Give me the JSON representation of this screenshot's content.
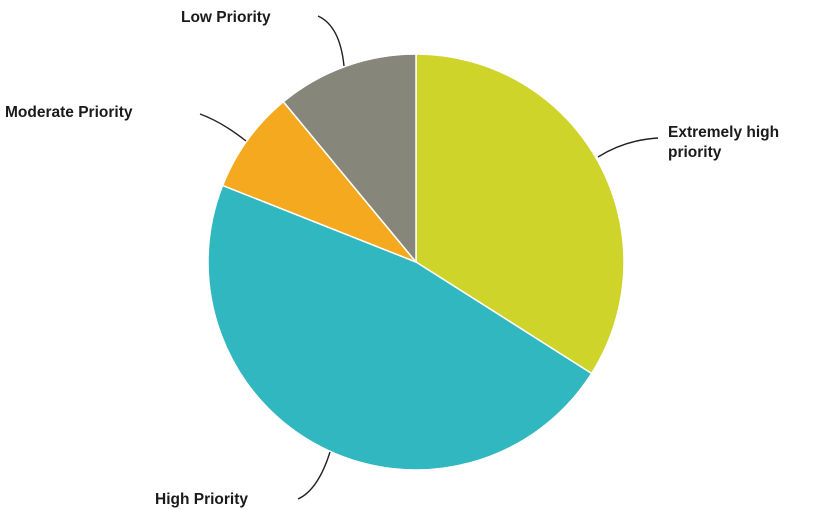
{
  "chart_data": {
    "type": "pie",
    "title": "",
    "start_angle_deg": 0,
    "direction": "clockwise",
    "slices": [
      {
        "label": "Extremely high priority",
        "label_lines": [
          "Extremely high",
          "priority"
        ],
        "value": 34,
        "color": "#cfd42a"
      },
      {
        "label": "High Priority",
        "label_lines": [
          "High Priority"
        ],
        "value": 47,
        "color": "#31b7bf"
      },
      {
        "label": "Moderate Priority",
        "label_lines": [
          "Moderate Priority"
        ],
        "value": 8,
        "color": "#f5a91e"
      },
      {
        "label": "Low Priority",
        "label_lines": [
          "Low Priority"
        ],
        "value": 11,
        "color": "#86867a"
      }
    ]
  }
}
